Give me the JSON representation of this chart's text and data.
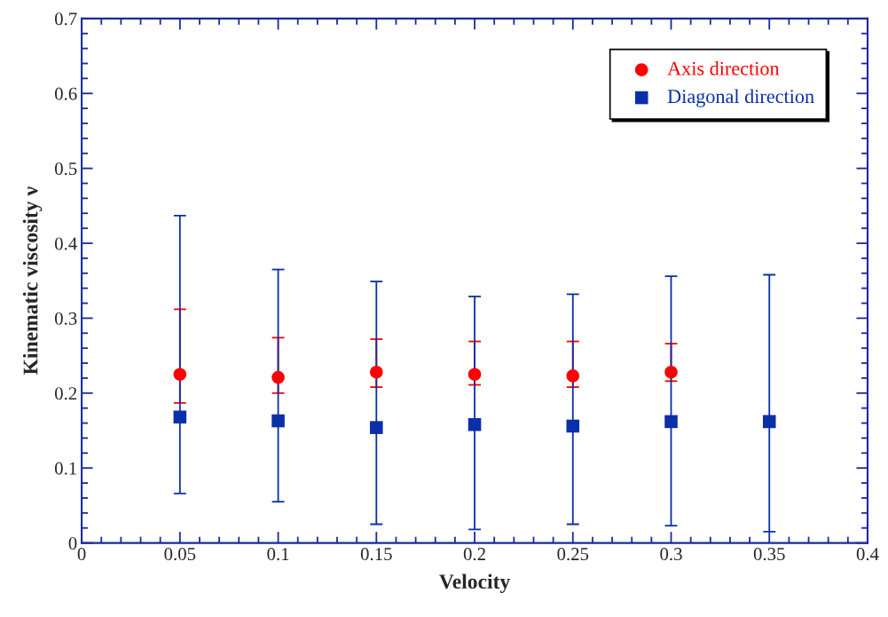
{
  "chart_data": {
    "type": "scatter",
    "xlabel": "Velocity",
    "ylabel": "Kinematic viscosity ν",
    "xlim": [
      0,
      0.4
    ],
    "ylim": [
      0,
      0.7
    ],
    "xticks": [
      0,
      0.05,
      0.1,
      0.15,
      0.2,
      0.25,
      0.3,
      0.35,
      0.4
    ],
    "yticks": [
      0,
      0.1,
      0.2,
      0.3,
      0.4,
      0.5,
      0.6,
      0.7
    ],
    "grid": false,
    "legend": "top right",
    "series": [
      {
        "name": "Axis direction",
        "color": "#ff0000",
        "marker": "circle",
        "x": [
          0.05,
          0.1,
          0.15,
          0.2,
          0.25,
          0.3
        ],
        "values": [
          0.225,
          0.221,
          0.228,
          0.225,
          0.223,
          0.228
        ],
        "errors": [
          [
            0.187,
            0.312
          ],
          [
            0.2,
            0.274
          ],
          [
            0.208,
            0.272
          ],
          [
            0.211,
            0.269
          ],
          [
            0.208,
            0.269
          ],
          [
            0.216,
            0.266
          ]
        ]
      },
      {
        "name": "Diagonal direction",
        "color": "#0a2fa8",
        "marker": "square",
        "x": [
          0.05,
          0.1,
          0.15,
          0.2,
          0.25,
          0.3,
          0.35
        ],
        "values": [
          0.168,
          0.163,
          0.154,
          0.158,
          0.156,
          0.162,
          0.162
        ],
        "errors": [
          [
            0.066,
            0.437
          ],
          [
            0.055,
            0.365
          ],
          [
            0.025,
            0.349
          ],
          [
            0.018,
            0.329
          ],
          [
            0.025,
            0.332
          ],
          [
            0.023,
            0.356
          ],
          [
            0.015,
            0.358
          ]
        ]
      }
    ]
  }
}
